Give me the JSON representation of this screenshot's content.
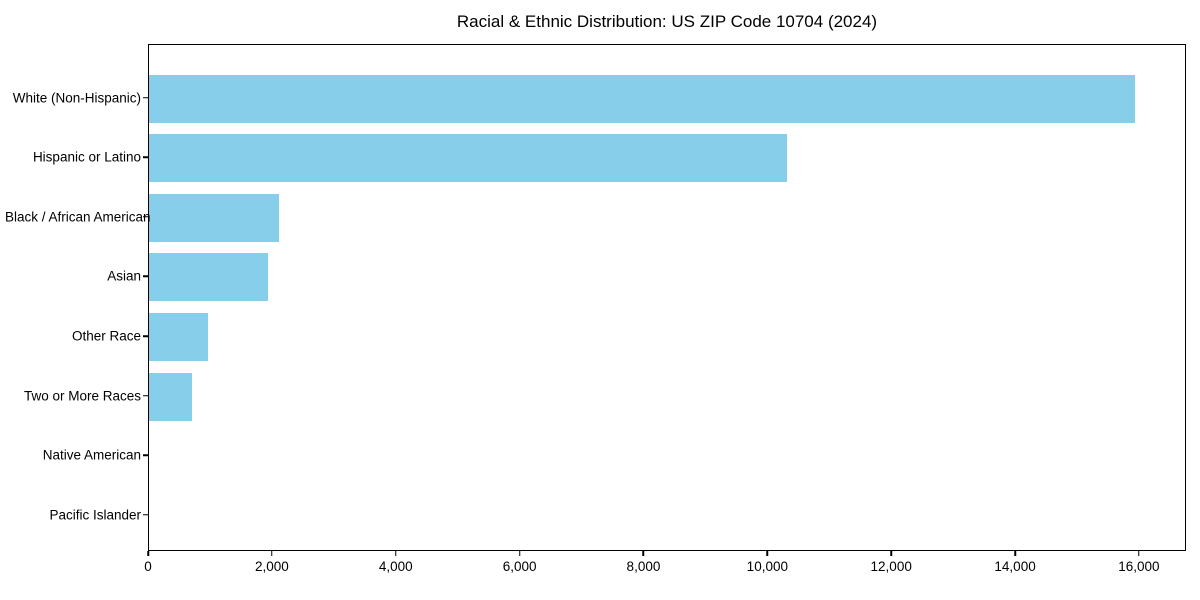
{
  "title": "Racial & Ethnic Distribution: US ZIP Code 10704 (2024)",
  "colors": {
    "bar": "#87CEEB",
    "axis": "#000000",
    "background": "#FFFFFF",
    "text": "#000000"
  },
  "chart_data": {
    "type": "bar",
    "orientation": "horizontal",
    "title": "Racial & Ethnic Distribution: US ZIP Code 10704 (2024)",
    "xlabel": "",
    "ylabel": "",
    "categories": [
      "White (Non-Hispanic)",
      "Hispanic or Latino",
      "Black / African American",
      "Asian",
      "Other Race",
      "Two or More Races",
      "Native American",
      "Pacific Islander"
    ],
    "values": [
      15950,
      10320,
      2100,
      1920,
      950,
      695,
      0,
      0
    ],
    "xlim": [
      0,
      16760
    ],
    "xticks": [
      0,
      2000,
      4000,
      6000,
      8000,
      10000,
      12000,
      14000,
      16000
    ],
    "xtick_labels": [
      "0",
      "2,000",
      "4,000",
      "6,000",
      "8,000",
      "10,000",
      "12,000",
      "14,000",
      "16,000"
    ],
    "grid": false,
    "legend": null,
    "bar_color": "#87CEEB",
    "frame": "full-box"
  }
}
